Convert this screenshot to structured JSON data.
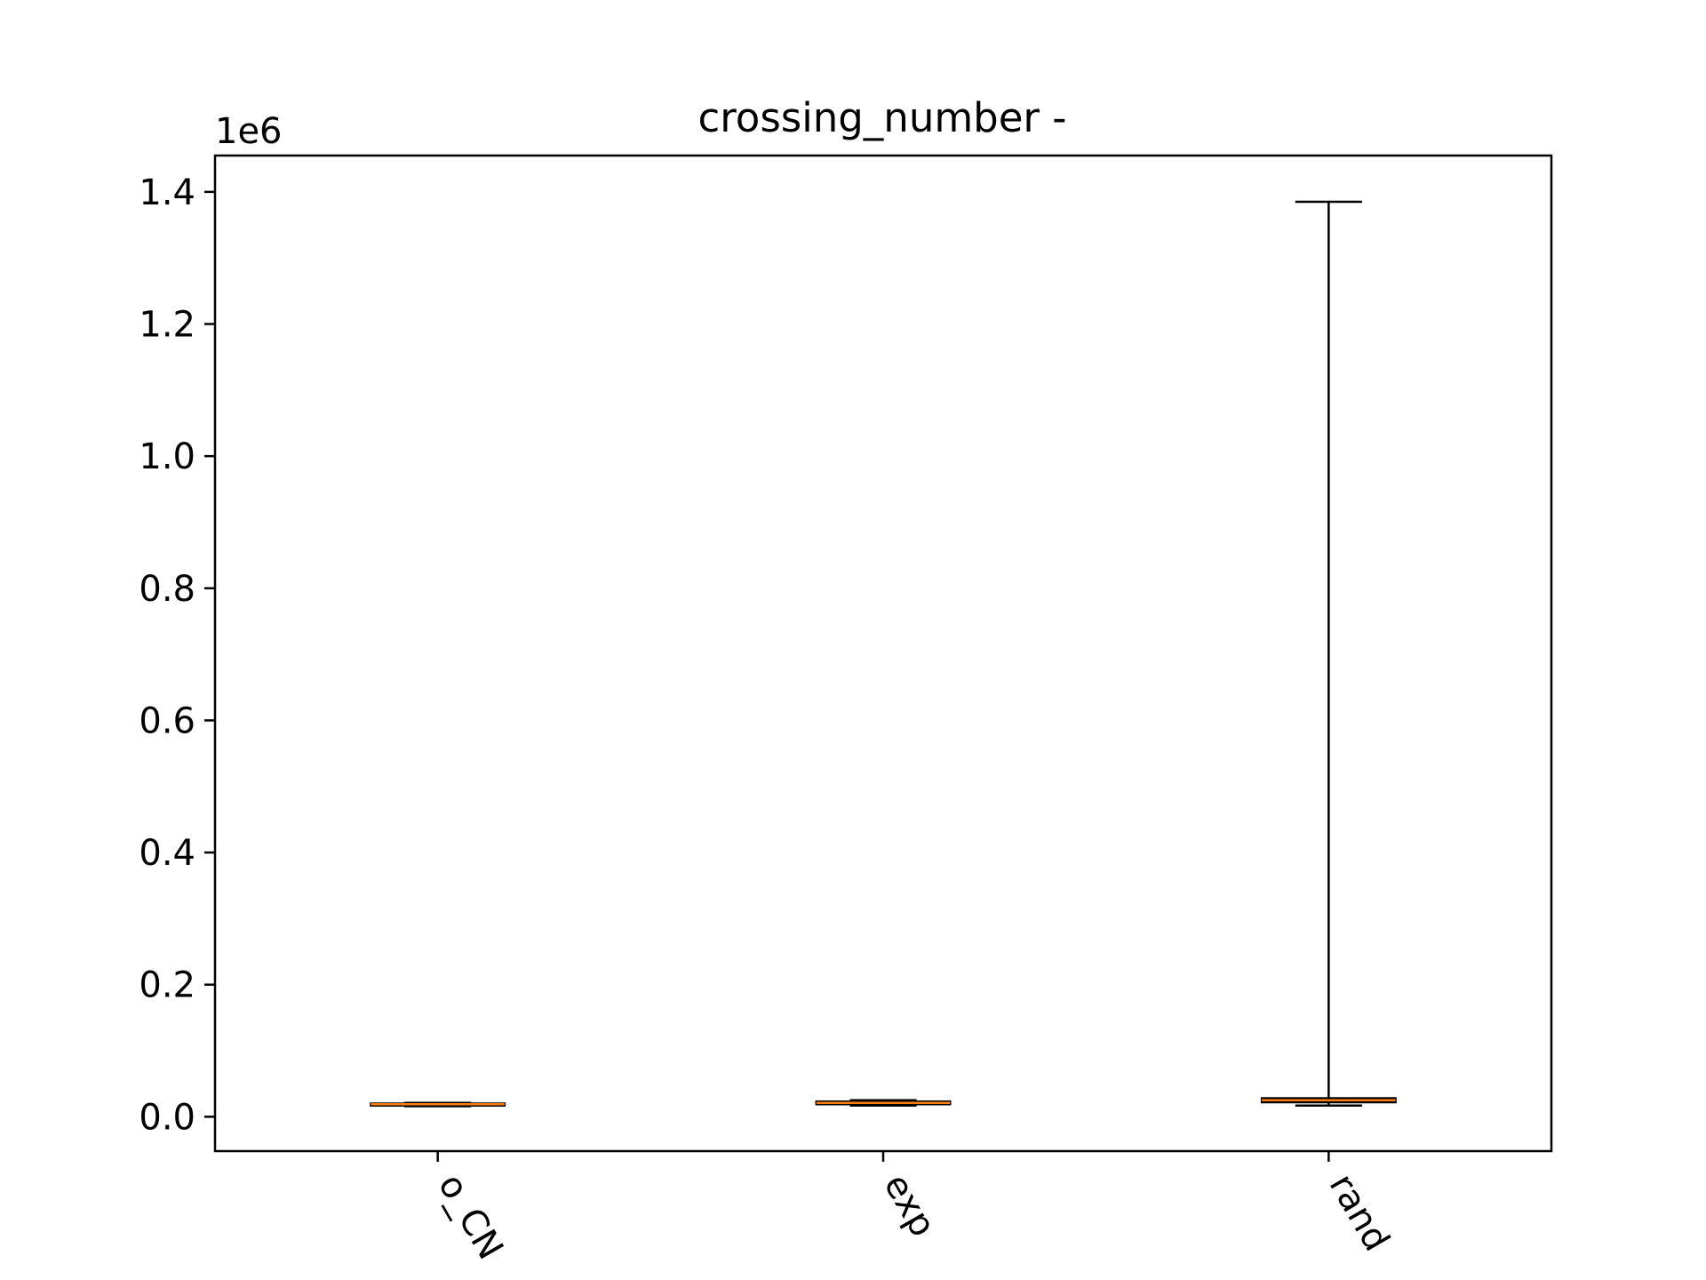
{
  "chart_data": {
    "type": "box",
    "title": "crossing_number -",
    "xlabel": "",
    "ylabel": "",
    "y_offset_label": "1e6",
    "y_multiplier": 1000000,
    "categories": [
      "o_CN",
      "exp",
      "rand"
    ],
    "yticks": [
      "0.0",
      "0.2",
      "0.4",
      "0.6",
      "0.8",
      "1.0",
      "1.2",
      "1.4"
    ],
    "ytick_values": [
      0.0,
      0.2,
      0.4,
      0.6,
      0.8,
      1.0,
      1.2,
      1.4
    ],
    "ylim": [
      -0.052,
      1.455
    ],
    "xtick_rotation_deg": 60,
    "grid": false,
    "legend": "none",
    "boxes": [
      {
        "category": "o_CN",
        "whisker_low": 0.016,
        "q1": 0.017,
        "median": 0.019,
        "q3": 0.02,
        "whisker_high": 0.021
      },
      {
        "category": "exp",
        "whisker_low": 0.017,
        "q1": 0.019,
        "median": 0.021,
        "q3": 0.023,
        "whisker_high": 0.025
      },
      {
        "category": "rand",
        "whisker_low": 0.017,
        "q1": 0.022,
        "median": 0.025,
        "q3": 0.028,
        "whisker_high": 1.385
      }
    ],
    "colors": {
      "box": "#000000",
      "median": "#ff7f0e",
      "axis": "#000000",
      "background": "#ffffff"
    }
  }
}
